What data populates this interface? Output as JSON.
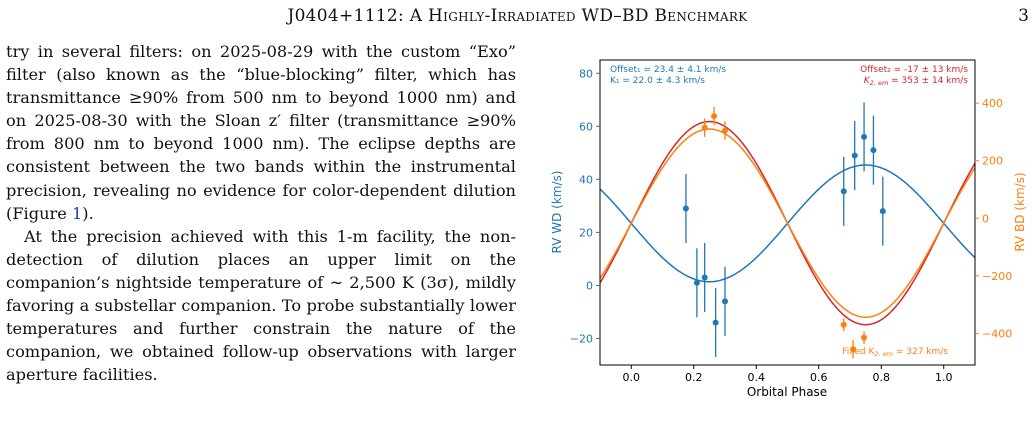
{
  "header": {
    "running_title": "J0404+1112: A Highly-Irradiated WD–BD Benchmark",
    "page_number": "3"
  },
  "body": {
    "p1": {
      "a": "try in several filters: on 2025-08-29 with the custom “Exo” filter (also known as the “blue-blocking” filter, which has transmittance ≥90% from 500 nm to beyond 1000 nm) and on 2025-08-30 with the Sloan z′ filter (transmittance ≥90% from 800 nm to beyond 1000 nm). The eclipse depths are consistent between the two bands within the instrumental precision, revealing no evidence for color-dependent dilution (Figure ",
      "ref": "1",
      "b": ")."
    },
    "p2": "At the precision achieved with this 1-m facility, the non-detection of dilution places an upper limit on the companion’s nightside temperature of ∼ 2,500 K (3σ), mildly favoring a substellar companion. To probe substantially lower temperatures and further constrain the nature of the companion, we obtained follow-up observations with larger aperture facilities."
  },
  "chart_data": {
    "type": "scatter",
    "xlabel": "Orbital Phase",
    "ylabel_left": "RV WD (km/s)",
    "ylabel_right": "RV BD (km/s)",
    "xlim": [
      -0.1,
      1.1
    ],
    "ylim_left": [
      -30,
      85
    ],
    "ylim_right": [
      -510,
      550
    ],
    "x_ticks": [
      "0.0",
      "0.2",
      "0.4",
      "0.6",
      "0.8",
      "1.0"
    ],
    "x_tick_values": [
      0.0,
      0.2,
      0.4,
      0.6,
      0.8,
      1.0
    ],
    "left_ticks": [
      "−20",
      "0",
      "20",
      "40",
      "60",
      "80"
    ],
    "left_tick_values": [
      -20,
      0,
      20,
      40,
      60,
      80
    ],
    "right_ticks": [
      "−400",
      "−200",
      "0",
      "200",
      "400"
    ],
    "right_tick_values": [
      -400,
      -200,
      0,
      200,
      400
    ],
    "grid": false,
    "annotations": {
      "wd_offset": "Offset₁ = 23.4 ± 4.1 km/s",
      "wd_k": "K₁ = 22.0 ± 4.3 km/s",
      "bd_offset": "Offset₂ = -17 ± 13 km/s",
      "bd_k_prefix": "K",
      "bd_k_sub": "2, em",
      "bd_k_suffix": " = 353 ± 14 km/s",
      "fixed_prefix": "Fixed K",
      "fixed_sub": "2, em",
      "fixed_suffix": " = 327 km/s"
    },
    "wd_points": [
      {
        "x": 0.175,
        "y": 29,
        "err": 13
      },
      {
        "x": 0.21,
        "y": 1,
        "err": 13
      },
      {
        "x": 0.235,
        "y": 3,
        "err": 13
      },
      {
        "x": 0.27,
        "y": -14,
        "err": 13
      },
      {
        "x": 0.3,
        "y": -6,
        "err": 13
      },
      {
        "x": 0.68,
        "y": 35.5,
        "err": 13
      },
      {
        "x": 0.715,
        "y": 49,
        "err": 13
      },
      {
        "x": 0.745,
        "y": 56,
        "err": 13
      },
      {
        "x": 0.775,
        "y": 51,
        "err": 13
      },
      {
        "x": 0.805,
        "y": 28,
        "err": 13
      }
    ],
    "bd_points": [
      {
        "x": 0.235,
        "y": 315,
        "err": 32
      },
      {
        "x": 0.265,
        "y": 355,
        "err": 32
      },
      {
        "x": 0.3,
        "y": 305,
        "err": 32
      },
      {
        "x": 0.68,
        "y": -370,
        "err": 22
      },
      {
        "x": 0.71,
        "y": -455,
        "err": 32
      },
      {
        "x": 0.745,
        "y": -415,
        "err": 22
      }
    ],
    "wd_model": {
      "offset": 23.4,
      "k": 22.0
    },
    "bd_fit_model": {
      "offset": -17,
      "k": 353
    },
    "bd_fixed_model": {
      "offset": -17,
      "k": 327
    },
    "colors": {
      "wd": "#1f77b4",
      "bd": "#ff7f0e",
      "fit": "#d62728",
      "fixed": "#ff7f0e"
    }
  }
}
